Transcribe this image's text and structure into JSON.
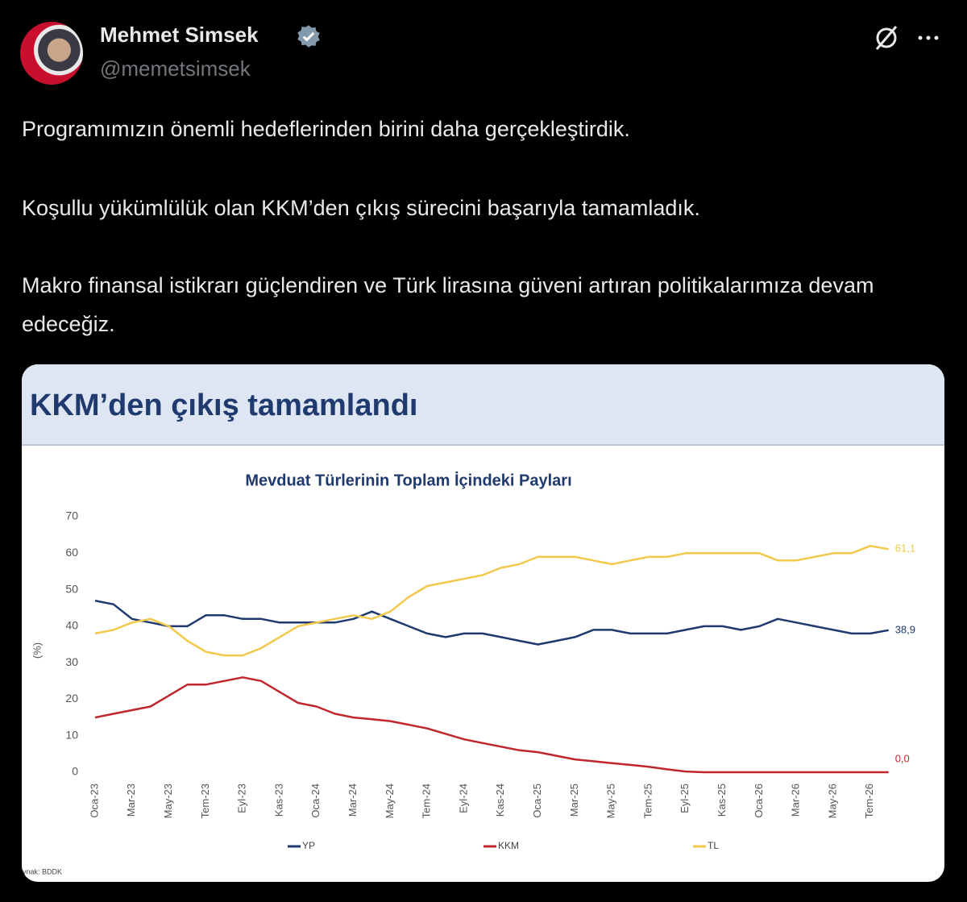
{
  "header": {
    "name": "Mehmet Simsek",
    "handle": "@memetsimsek"
  },
  "paragraphs": [
    "Programımızın önemli hedeflerinden birini daha gerçekleştirdik.",
    "Koşullu yükümlülük olan KKM’den çıkış sürecini başarıyla tamamladık.",
    "Makro finansal istikrarı güçlendiren ve Türk lirasına güveni artıran politikalarımıza devam edeceğiz."
  ],
  "card": {
    "title": "KKM’den çıkış tamamlandı"
  },
  "chart_data": {
    "type": "line",
    "title": "Mevduat Türlerinin Toplam İçindeki Payları",
    "ylabel": "(%)",
    "source": "Kaynak: BDDK",
    "categories": [
      "Oca-23",
      null,
      "Mar-23",
      null,
      "May-23",
      null,
      "Tem-23",
      null,
      "Eyl-23",
      null,
      "Kas-23",
      null,
      "Oca-24",
      null,
      "Mar-24",
      null,
      "May-24",
      null,
      "Tem-24",
      null,
      "Eyl-24",
      null,
      "Kas-24",
      null,
      "Oca-25",
      null,
      "Mar-25",
      null,
      "May-25",
      null,
      "Tem-25",
      null,
      "Eyl-25",
      null,
      "Kas-25",
      null,
      "Oca-26",
      null,
      "Mar-26",
      null,
      "May-26",
      null,
      "Tem-26",
      null
    ],
    "series": [
      {
        "name": "YP",
        "color": "#1f3a6e",
        "values": [
          47,
          46,
          42,
          41,
          40,
          40,
          43,
          43,
          42,
          42,
          41,
          41,
          41,
          41,
          42,
          44,
          42,
          40,
          38,
          37,
          38,
          38,
          37,
          36,
          35,
          36,
          37,
          39,
          39,
          38,
          38,
          38,
          39,
          40,
          40,
          39,
          40,
          42,
          41,
          40,
          39,
          38,
          38,
          38.9
        ],
        "value_labels": [
          null,
          null,
          null,
          null,
          null,
          null,
          null,
          null,
          null,
          null,
          null,
          null,
          null,
          null,
          null,
          null,
          null,
          null,
          null,
          null,
          null,
          null,
          null,
          null,
          null,
          null,
          null,
          null,
          null,
          null,
          null,
          null,
          null,
          null,
          null,
          null,
          null,
          null,
          null,
          null,
          null,
          null,
          null,
          "38,9"
        ]
      },
      {
        "name": "KKM",
        "color": "#c0272d",
        "values": [
          15,
          16,
          17,
          18,
          21,
          24,
          24,
          25,
          26,
          25,
          22,
          19,
          18,
          16,
          15,
          14.5,
          14,
          13,
          12,
          10.5,
          9,
          8,
          7,
          6,
          5.5,
          4.5,
          3.5,
          3,
          2.5,
          2,
          1.5,
          0.8,
          0.2,
          0,
          0,
          0,
          0,
          0,
          0,
          0,
          0,
          0,
          0,
          0
        ],
        "value_labels": [
          null,
          null,
          null,
          null,
          null,
          null,
          null,
          null,
          null,
          null,
          null,
          null,
          null,
          null,
          null,
          null,
          null,
          null,
          null,
          null,
          null,
          null,
          null,
          null,
          null,
          null,
          null,
          null,
          null,
          null,
          null,
          null,
          null,
          null,
          null,
          null,
          null,
          null,
          null,
          null,
          null,
          null,
          null,
          "0,0"
        ]
      },
      {
        "name": "TL",
        "color": "#f2c94c",
        "values": [
          38,
          39,
          41,
          42,
          40,
          36,
          33,
          32,
          32,
          34,
          37,
          40,
          41,
          42,
          43,
          42,
          44,
          48,
          51,
          52,
          53,
          54,
          56,
          57,
          59,
          59,
          59,
          58,
          57,
          58,
          59,
          59,
          60,
          60,
          60,
          60,
          60,
          58,
          58,
          59,
          60,
          60,
          62,
          61.1
        ],
        "value_labels": [
          null,
          null,
          null,
          null,
          null,
          null,
          null,
          null,
          null,
          null,
          null,
          null,
          null,
          null,
          null,
          null,
          null,
          null,
          null,
          null,
          null,
          null,
          null,
          null,
          null,
          null,
          null,
          null,
          null,
          null,
          null,
          null,
          null,
          null,
          null,
          null,
          null,
          null,
          null,
          null,
          null,
          null,
          null,
          "61,1"
        ]
      }
    ],
    "ylim": [
      0,
      70
    ],
    "yticks": [
      0,
      10,
      20,
      30,
      40,
      50,
      60,
      70
    ],
    "grid": false,
    "legend": "bottom"
  }
}
